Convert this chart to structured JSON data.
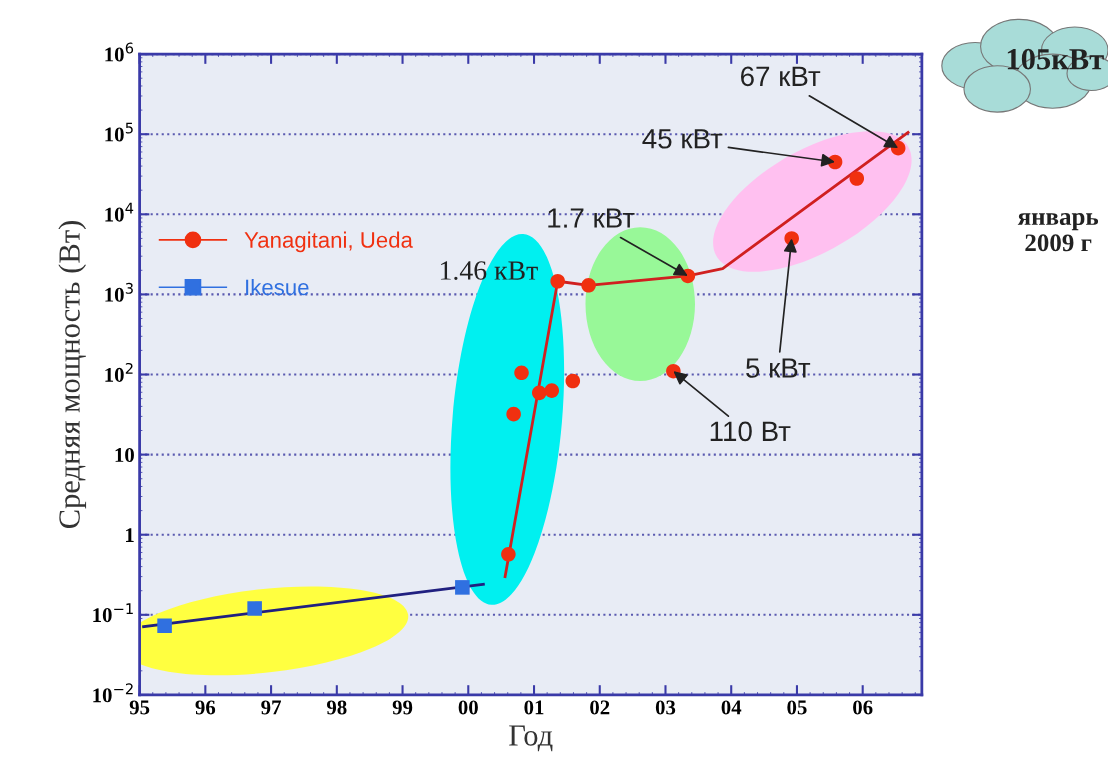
{
  "chart_data": {
    "type": "scatter",
    "xlabel": "Год",
    "ylabel": "Средняя мощность (Вт)",
    "series": [
      {
        "name": "Yanagitani, Ueda",
        "color": "#f03010",
        "marker": "circle",
        "x": [
          2000.61,
          2000.69,
          2000.81,
          2001.08,
          2001.27,
          2001.59,
          2001.36,
          2001.83,
          2003.12,
          2003.34,
          2004.92,
          2005.58,
          2005.91,
          2006.54
        ],
        "values": [
          0.57,
          32,
          105,
          59,
          63,
          83,
          1460,
          1300,
          110,
          1700,
          5000,
          45000,
          28000,
          67000
        ]
      },
      {
        "type": "line",
        "color": "#d02020",
        "marker": "none",
        "x": [
          2000.56,
          2001.36,
          2001.83,
          2003.34,
          2003.87,
          2006.69
        ],
        "values": [
          0.3,
          1460,
          1300,
          1700,
          2100,
          105000
        ]
      },
      {
        "name": "Ikesue",
        "color": "#3070e0",
        "marker": "square",
        "x": [
          1995.38,
          1996.75,
          1999.91
        ],
        "values": [
          0.073,
          0.12,
          0.22
        ]
      },
      {
        "type": "line",
        "color": "#202080",
        "marker": "none",
        "x": [
          1995.06,
          2000.23
        ],
        "values": [
          0.071,
          0.24
        ]
      }
    ],
    "log": "y",
    "xlim": [
      1995,
      2006.9
    ],
    "ylim": [
      0.01,
      1000000
    ],
    "xticks": [
      {
        "value": 1995,
        "label": "95"
      },
      {
        "value": 1996,
        "label": "96"
      },
      {
        "value": 1997,
        "label": "97"
      },
      {
        "value": 1998,
        "label": "98"
      },
      {
        "value": 1999,
        "label": "99"
      },
      {
        "value": 2000,
        "label": "00"
      },
      {
        "value": 2001,
        "label": "01"
      },
      {
        "value": 2002,
        "label": "02"
      },
      {
        "value": 2003,
        "label": "03"
      },
      {
        "value": 2004,
        "label": "04"
      },
      {
        "value": 2005,
        "label": "05"
      },
      {
        "value": 2006,
        "label": "06"
      }
    ],
    "yticks": [
      {
        "value": 0.01,
        "label": "10$^{−2}$"
      },
      {
        "value": 0.1,
        "label": "10$^{−1}$"
      },
      1,
      10,
      {
        "value": 100,
        "label": "10$^{2}$"
      },
      {
        "value": 1000,
        "label": "10$^{3}$"
      },
      {
        "value": 10000,
        "label": "10$^{4}$"
      },
      {
        "value": 100000,
        "label": "10$^{5}$"
      },
      {
        "value": 1000000,
        "label": "10$^{6}$"
      }
    ],
    "grid": "y",
    "legend": "left",
    "annotations": [
      {
        "text": "1.46 кВт",
        "x": 2001.36,
        "y": 1460
      },
      {
        "text": "1.7 кВт",
        "x": 2003.34,
        "y": 1700
      },
      {
        "text": "110 Вт",
        "x": 2003.12,
        "y": 110
      },
      {
        "text": "5 кВт",
        "x": 2004.92,
        "y": 5000
      },
      {
        "text": "45 кВт",
        "x": 2005.58,
        "y": 45000
      },
      {
        "text": "67 кВт",
        "x": 2006.54,
        "y": 67000
      },
      "105кВт",
      "январь\n2009 г"
    ]
  }
}
